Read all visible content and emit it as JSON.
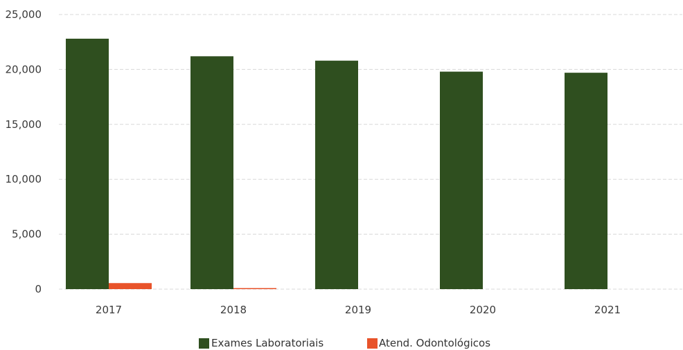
{
  "chart_data": {
    "type": "bar",
    "categories": [
      "2017",
      "2018",
      "2019",
      "2020",
      "2021"
    ],
    "series": [
      {
        "name": "Exames Laboratoriais",
        "values": [
          22800,
          21200,
          20800,
          19800,
          19700
        ]
      },
      {
        "name": "Atend. Odontológicos",
        "values": [
          550,
          80,
          0,
          0,
          0
        ]
      }
    ],
    "colors": {
      "Exames Laboratoriais": "#2f4f1f",
      "Atend. Odontológicos": "#e8532a"
    },
    "ylim": [
      0,
      25000
    ],
    "yticks": [
      0,
      5000,
      10000,
      15000,
      20000,
      25000
    ],
    "ytick_labels": [
      "0",
      "5,000",
      "10,000",
      "15,000",
      "20,000",
      "25,000"
    ],
    "grid": true,
    "legend_position": "bottom-center"
  }
}
